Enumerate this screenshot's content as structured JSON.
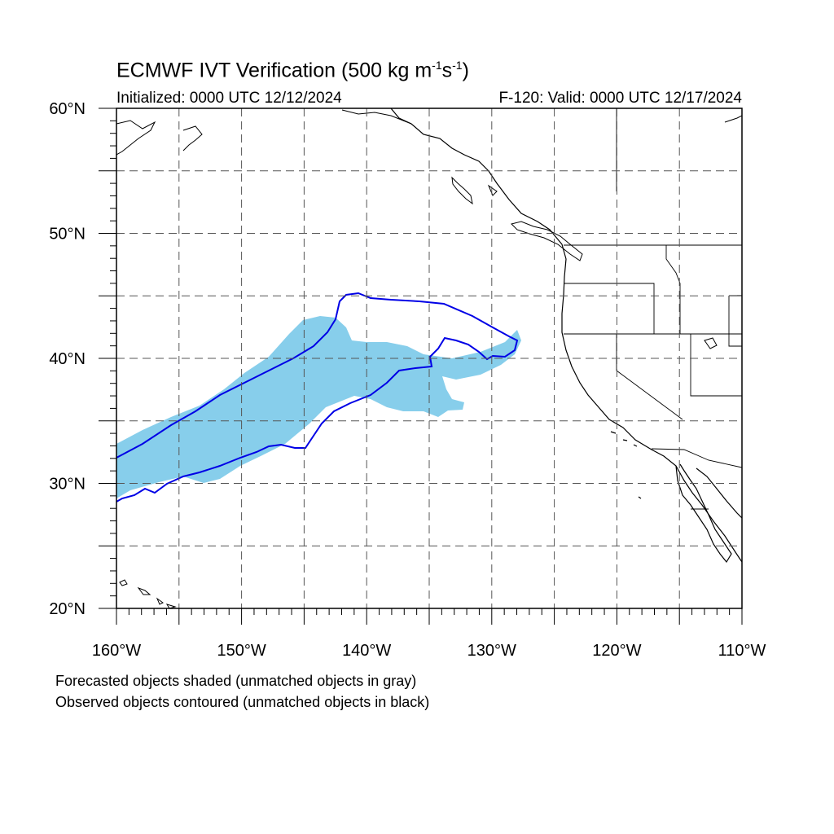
{
  "title": {
    "main": "ECMWF IVT Verification (500 kg m",
    "exp1": "-1",
    "s": "s",
    "exp2": "-1",
    "close": ")"
  },
  "initialized": "Initialized: 0000 UTC 12/12/2024",
  "valid": "F-120: Valid: 0000 UTC 12/17/2024",
  "lat_labels": [
    "60°N",
    "50°N",
    "40°N",
    "30°N",
    "20°N"
  ],
  "lon_labels": [
    "160°W",
    "150°W",
    "140°W",
    "130°W",
    "120°W",
    "110°W"
  ],
  "captions": [
    "Forecasted objects shaded (unmatched objects in gray)",
    "Observed objects contoured (unmatched objects in black)"
  ],
  "colors": {
    "forecast_fill": "#87ceeb",
    "observed_contour": "#0000e6",
    "coastline": "#000000",
    "grid": "#555555"
  },
  "map_extent": {
    "lon": [
      -160,
      -110
    ],
    "lat": [
      20,
      60
    ]
  },
  "grid_step_deg": 5
}
